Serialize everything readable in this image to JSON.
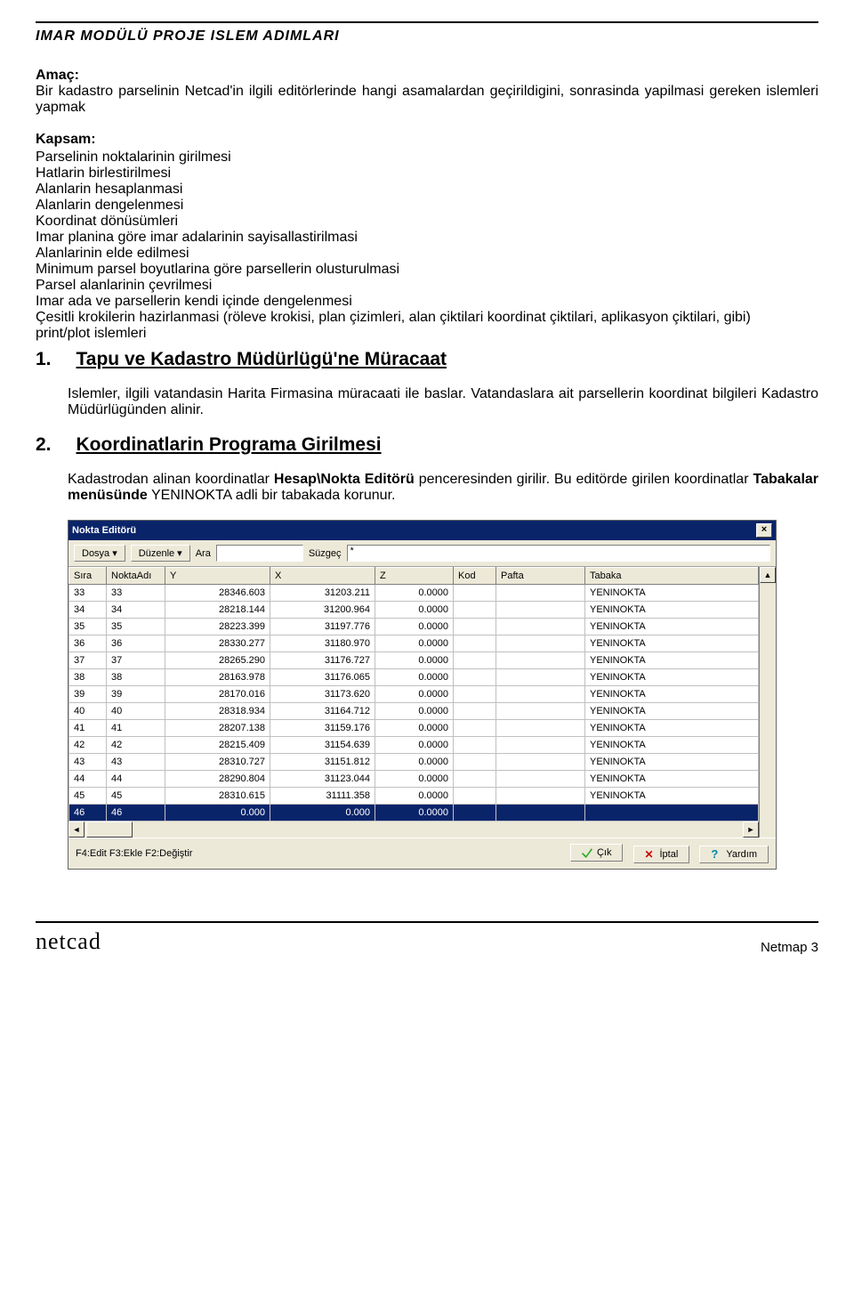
{
  "header": "IMAR MODÜLÜ  PROJE ISLEM ADIMLARI",
  "amac_label": "Amaç:",
  "amac_text": "Bir kadastro parselinin Netcad'in ilgili editörlerinde hangi asamalardan geçirildigini, sonrasinda yapilmasi gereken islemleri yapmak",
  "kapsam_label": "Kapsam:",
  "kapsam_items": [
    "Parselinin noktalarinin girilmesi",
    "Hatlarin birlestirilmesi",
    "Alanlarin hesaplanmasi",
    "Alanlarin dengelenmesi",
    "Koordinat dönüsümleri",
    "Imar planina göre imar adalarinin sayisallastirilmasi",
    "Alanlarinin elde edilmesi",
    "Minimum parsel boyutlarina göre parsellerin olusturulmasi",
    "Parsel alanlarinin çevrilmesi",
    "Imar ada  ve parsellerin kendi içinde dengelenmesi",
    "Çesitli krokilerin hazirlanmasi (röleve krokisi, plan çizimleri, alan çiktilari koordinat çiktilari, aplikasyon çiktilari, gibi)",
    "print/plot islemleri"
  ],
  "sec1_num": "1.",
  "sec1_title": "Tapu ve Kadastro Müdürlügü'ne Müracaat",
  "sec1_para": "Islemler, ilgili vatandasin Harita Firmasina müracaati ile baslar. Vatandaslara ait parsellerin koordinat bilgileri Kadastro Müdürlügünden alinir.",
  "sec2_num": "2.",
  "sec2_title": "Koordinatlarin Programa Girilmesi",
  "sec2_p1_a": "Kadastrodan alinan koordinatlar ",
  "sec2_p1_b": "Hesap\\Nokta Editörü",
  "sec2_p1_c": " penceresinden girilir. Bu editörde girilen koordinatlar ",
  "sec2_p1_d": "Tabakalar menüsünde",
  "sec2_p1_e": " YENINOKTA adli bir tabakada korunur.",
  "win_title": "Nokta Editörü",
  "tb_dosya": "Dosya ▾",
  "tb_duzenle": "Düzenle ▾",
  "tb_ara_label": "Ara",
  "tb_suzgec_label": "Süzgeç",
  "tb_suzgec_value": "*",
  "cols": [
    "Sıra",
    "NoktaAdı",
    "Y",
    "X",
    "Z",
    "Kod",
    "Pafta",
    "Tabaka"
  ],
  "col_widths": [
    "42px",
    "66px",
    "118px",
    "118px",
    "88px",
    "48px",
    "100px",
    "auto"
  ],
  "rows": [
    {
      "s": "33",
      "n": "33",
      "y": "28346.603",
      "x": "31203.211",
      "z": "0.0000",
      "k": "",
      "p": "",
      "t": "YENINOKTA"
    },
    {
      "s": "34",
      "n": "34",
      "y": "28218.144",
      "x": "31200.964",
      "z": "0.0000",
      "k": "",
      "p": "",
      "t": "YENINOKTA"
    },
    {
      "s": "35",
      "n": "35",
      "y": "28223.399",
      "x": "31197.776",
      "z": "0.0000",
      "k": "",
      "p": "",
      "t": "YENINOKTA"
    },
    {
      "s": "36",
      "n": "36",
      "y": "28330.277",
      "x": "31180.970",
      "z": "0.0000",
      "k": "",
      "p": "",
      "t": "YENINOKTA"
    },
    {
      "s": "37",
      "n": "37",
      "y": "28265.290",
      "x": "31176.727",
      "z": "0.0000",
      "k": "",
      "p": "",
      "t": "YENINOKTA"
    },
    {
      "s": "38",
      "n": "38",
      "y": "28163.978",
      "x": "31176.065",
      "z": "0.0000",
      "k": "",
      "p": "",
      "t": "YENINOKTA"
    },
    {
      "s": "39",
      "n": "39",
      "y": "28170.016",
      "x": "31173.620",
      "z": "0.0000",
      "k": "",
      "p": "",
      "t": "YENINOKTA"
    },
    {
      "s": "40",
      "n": "40",
      "y": "28318.934",
      "x": "31164.712",
      "z": "0.0000",
      "k": "",
      "p": "",
      "t": "YENINOKTA"
    },
    {
      "s": "41",
      "n": "41",
      "y": "28207.138",
      "x": "31159.176",
      "z": "0.0000",
      "k": "",
      "p": "",
      "t": "YENINOKTA"
    },
    {
      "s": "42",
      "n": "42",
      "y": "28215.409",
      "x": "31154.639",
      "z": "0.0000",
      "k": "",
      "p": "",
      "t": "YENINOKTA"
    },
    {
      "s": "43",
      "n": "43",
      "y": "28310.727",
      "x": "31151.812",
      "z": "0.0000",
      "k": "",
      "p": "",
      "t": "YENINOKTA"
    },
    {
      "s": "44",
      "n": "44",
      "y": "28290.804",
      "x": "31123.044",
      "z": "0.0000",
      "k": "",
      "p": "",
      "t": "YENINOKTA"
    },
    {
      "s": "45",
      "n": "45",
      "y": "28310.615",
      "x": "31111.358",
      "z": "0.0000",
      "k": "",
      "p": "",
      "t": "YENINOKTA"
    },
    {
      "s": "46",
      "n": "46",
      "y": "0.000",
      "x": "0.000",
      "z": "0.0000",
      "k": "",
      "p": "",
      "t": "",
      "sel": true
    }
  ],
  "status_left": "F4:Edit  F3:Ekle  F2:Değiştir",
  "btn_cik": "Çık",
  "btn_iptal": "İptal",
  "btn_yardim": "Yardım",
  "footer_logo": "netcad",
  "footer_right": "Netmap   3"
}
